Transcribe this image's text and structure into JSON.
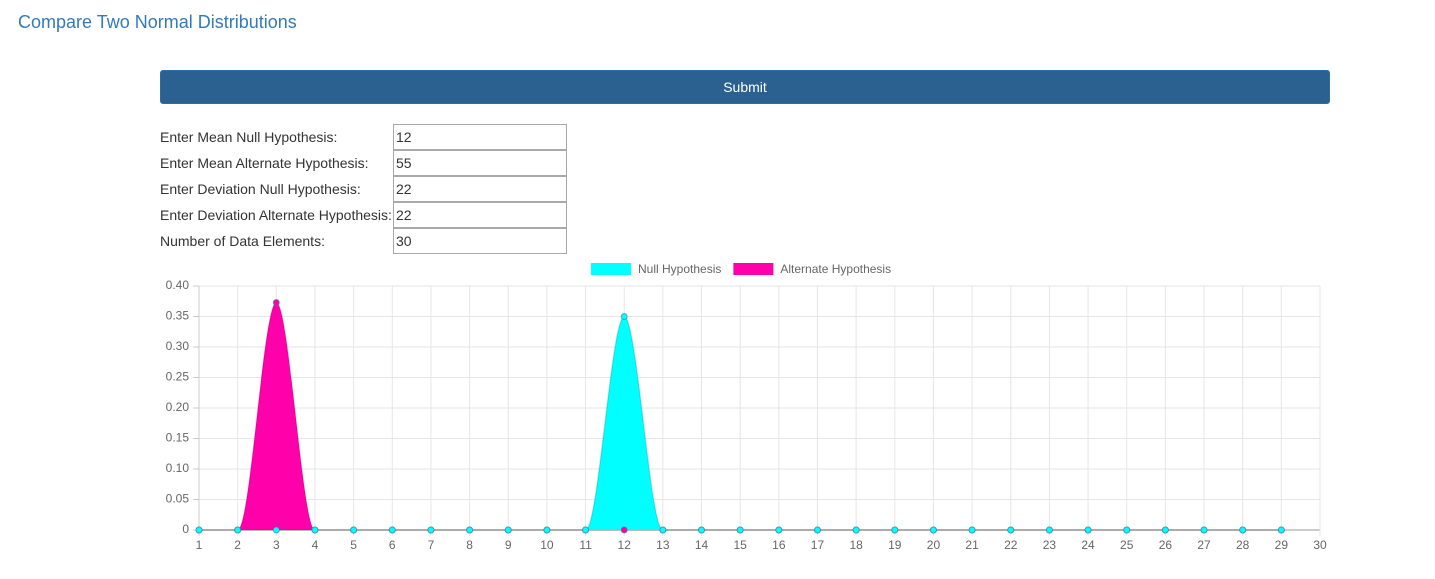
{
  "header": {
    "title": "Compare Two Normal Distributions"
  },
  "form": {
    "submit": "Submit",
    "fields": [
      {
        "label": "Enter Mean Null Hypothesis:",
        "value": "12"
      },
      {
        "label": "Enter Mean Alternate Hypothesis:",
        "value": "55"
      },
      {
        "label": "Enter Deviation Null Hypothesis:",
        "value": "22"
      },
      {
        "label": "Enter Deviation Alternate Hypothesis:",
        "value": "22"
      },
      {
        "label": "Number of Data Elements:",
        "value": "30"
      }
    ]
  },
  "chart_data": {
    "type": "area",
    "categories": [
      "1",
      "2",
      "3",
      "4",
      "5",
      "6",
      "7",
      "8",
      "9",
      "10",
      "11",
      "12",
      "13",
      "14",
      "15",
      "16",
      "17",
      "18",
      "19",
      "20",
      "21",
      "22",
      "23",
      "24",
      "25",
      "26",
      "27",
      "28",
      "29",
      "30"
    ],
    "series": [
      {
        "name": "Null Hypothesis",
        "color": "#00ffff",
        "values": [
          0,
          0,
          0,
          0,
          0,
          0,
          0,
          0,
          0,
          0,
          0,
          0.35,
          0,
          0,
          0,
          0,
          0,
          0,
          0,
          0,
          0,
          0,
          0,
          0,
          0,
          0,
          0,
          0,
          0,
          null
        ]
      },
      {
        "name": "Alternate Hypothesis",
        "color": "#ff00aa",
        "values": [
          0,
          0,
          0.373,
          0,
          0,
          0,
          0,
          0,
          0,
          0,
          0,
          0,
          0,
          0,
          0,
          0,
          0,
          0,
          0,
          0,
          0,
          0,
          0,
          0,
          0,
          0,
          0,
          0,
          0,
          null
        ]
      }
    ],
    "ylim": [
      0,
      0.4
    ],
    "yticks": [
      0,
      0.05,
      {
        "value": 0.1,
        "label": "0.10"
      },
      0.15,
      {
        "value": 0.2,
        "label": "0.20"
      },
      0.25,
      {
        "value": 0.3,
        "label": "0.30"
      },
      0.35,
      {
        "value": 0.4,
        "label": "0.40"
      }
    ],
    "grid": true,
    "legend": "top"
  }
}
